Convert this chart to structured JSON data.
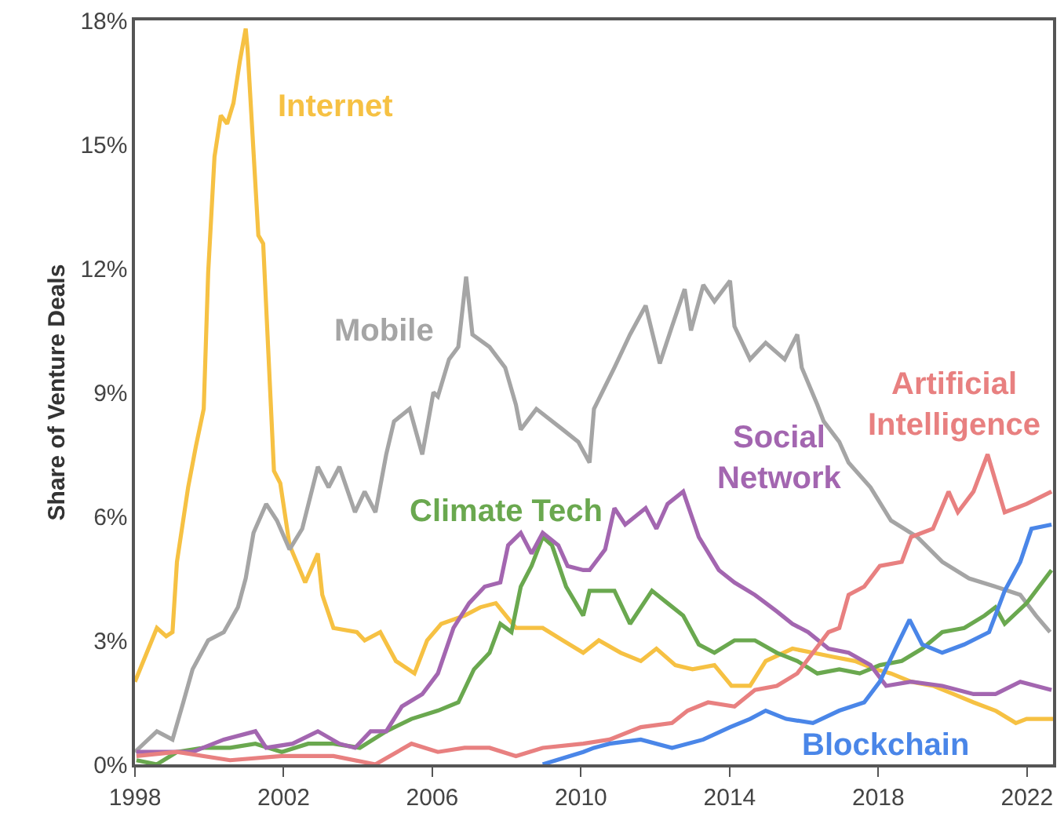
{
  "chart_data": {
    "type": "line",
    "ylabel": "Share of Venture Deals",
    "xlim": [
      1998,
      2022.7
    ],
    "xticks": [
      1998,
      2002,
      2006,
      2010,
      2014,
      2018,
      2022
    ],
    "ylim": [
      0,
      18
    ],
    "yticks": [
      {
        "value": 0,
        "label": "0%"
      },
      {
        "value": 3,
        "label": "3%"
      },
      {
        "value": 6,
        "label": "6%"
      },
      {
        "value": 9,
        "label": "9%"
      },
      {
        "value": 12,
        "label": "12%"
      },
      {
        "value": 15,
        "label": "15%"
      },
      {
        "value": 18,
        "label": "18%"
      }
    ],
    "legend": false,
    "marker": "none",
    "line_style": "solid",
    "series": [
      {
        "name": "Internet",
        "color": "#f6c143",
        "x": [
          1998.0,
          1998.59,
          1998.84,
          1999.01,
          1999.13,
          1999.43,
          1999.64,
          1999.85,
          1999.97,
          2000.14,
          2000.31,
          2000.48,
          2000.65,
          2000.82,
          2000.98,
          2001.03,
          2001.32,
          2001.45,
          2001.74,
          2001.91,
          2002.16,
          2002.58,
          2002.92,
          2003.04,
          2003.34,
          2003.97,
          2004.18,
          2004.6,
          2005.02,
          2005.52,
          2005.86,
          2006.24,
          2006.87,
          2007.29,
          2007.71,
          2008.25,
          2008.97,
          2009.51,
          2010.06,
          2010.48,
          2011.07,
          2011.61,
          2012.03,
          2012.54,
          2013.0,
          2013.59,
          2014.05,
          2014.55,
          2014.97,
          2015.69,
          2016.24,
          2016.78,
          2017.37,
          2017.92,
          2018.34,
          2018.88,
          2019.47,
          2020.02,
          2020.56,
          2021.15,
          2021.7,
          2021.99,
          2022.7
        ],
        "values": [
          2.0,
          3.3,
          3.1,
          3.2,
          4.9,
          6.7,
          7.7,
          8.6,
          11.9,
          14.7,
          15.7,
          15.5,
          16.0,
          17.0,
          17.8,
          17.3,
          12.8,
          12.6,
          7.1,
          6.8,
          5.3,
          4.4,
          5.1,
          4.1,
          3.3,
          3.2,
          3.0,
          3.2,
          2.5,
          2.2,
          3.0,
          3.4,
          3.6,
          3.8,
          3.9,
          3.3,
          3.3,
          3.0,
          2.7,
          3.0,
          2.7,
          2.5,
          2.8,
          2.4,
          2.3,
          2.4,
          1.9,
          1.9,
          2.5,
          2.8,
          2.7,
          2.6,
          2.5,
          2.3,
          2.2,
          2.0,
          1.9,
          1.7,
          1.5,
          1.3,
          1.0,
          1.1,
          1.1
        ]
      },
      {
        "name": "Mobile",
        "color": "#a5a5a5",
        "x": [
          1998.0,
          1998.59,
          1999.01,
          1999.3,
          1999.55,
          1999.97,
          2000.39,
          2000.77,
          2000.98,
          2001.19,
          2001.53,
          2001.82,
          2002.16,
          2002.5,
          2002.92,
          2003.21,
          2003.5,
          2003.92,
          2004.18,
          2004.47,
          2004.76,
          2004.97,
          2005.39,
          2005.73,
          2006.03,
          2006.15,
          2006.45,
          2006.7,
          2006.91,
          2007.08,
          2007.54,
          2007.96,
          2008.25,
          2008.38,
          2008.8,
          2009.51,
          2009.93,
          2010.23,
          2010.35,
          2010.9,
          2011.32,
          2011.74,
          2012.12,
          2012.45,
          2012.79,
          2012.96,
          2013.29,
          2013.59,
          2014.01,
          2014.13,
          2014.55,
          2014.97,
          2015.48,
          2015.82,
          2015.94,
          2016.36,
          2016.53,
          2016.95,
          2017.2,
          2017.79,
          2018.34,
          2019.05,
          2019.72,
          2020.44,
          2021.15,
          2021.82,
          2022.24,
          2022.62
        ],
        "values": [
          0.3,
          0.8,
          0.6,
          1.5,
          2.3,
          3.0,
          3.2,
          3.8,
          4.5,
          5.6,
          6.3,
          5.9,
          5.2,
          5.7,
          7.2,
          6.7,
          7.2,
          6.1,
          6.6,
          6.1,
          7.5,
          8.3,
          8.6,
          7.5,
          9.0,
          8.9,
          9.8,
          10.1,
          11.8,
          10.4,
          10.1,
          9.6,
          8.7,
          8.1,
          8.6,
          8.1,
          7.8,
          7.3,
          8.6,
          9.6,
          10.4,
          11.1,
          9.7,
          10.6,
          11.5,
          10.5,
          11.6,
          11.2,
          11.7,
          10.6,
          9.8,
          10.2,
          9.8,
          10.4,
          9.6,
          8.7,
          8.3,
          7.8,
          7.3,
          6.7,
          5.9,
          5.5,
          4.9,
          4.5,
          4.3,
          4.1,
          3.6,
          3.2
        ]
      },
      {
        "name": "Climate Tech",
        "color": "#6aa84f",
        "x": [
          1998.04,
          1998.59,
          1999.13,
          1999.85,
          2000.56,
          2001.24,
          2001.95,
          2002.66,
          2003.34,
          2004.05,
          2004.76,
          2005.44,
          2006.15,
          2006.7,
          2007.12,
          2007.54,
          2007.83,
          2008.13,
          2008.38,
          2008.67,
          2008.97,
          2009.22,
          2009.6,
          2010.06,
          2010.23,
          2010.48,
          2010.9,
          2011.32,
          2011.91,
          2012.33,
          2012.75,
          2013.17,
          2013.59,
          2014.13,
          2014.68,
          2015.27,
          2015.82,
          2016.36,
          2016.95,
          2017.5,
          2018.04,
          2018.63,
          2019.18,
          2019.72,
          2020.31,
          2020.86,
          2021.15,
          2021.4,
          2021.99,
          2022.66
        ],
        "values": [
          0.1,
          0.0,
          0.3,
          0.4,
          0.4,
          0.5,
          0.3,
          0.5,
          0.5,
          0.4,
          0.8,
          1.1,
          1.3,
          1.5,
          2.3,
          2.7,
          3.4,
          3.2,
          4.3,
          4.8,
          5.5,
          5.3,
          4.3,
          3.6,
          4.2,
          4.2,
          4.2,
          3.4,
          4.2,
          3.9,
          3.6,
          2.9,
          2.7,
          3.0,
          3.0,
          2.7,
          2.5,
          2.2,
          2.3,
          2.2,
          2.4,
          2.5,
          2.8,
          3.2,
          3.3,
          3.6,
          3.8,
          3.4,
          3.9,
          4.7
        ]
      },
      {
        "name": "Social Network",
        "color": "#a366b0",
        "x": [
          1998.04,
          1999.01,
          1999.55,
          2000.39,
          2001.24,
          2001.53,
          2002.24,
          2002.92,
          2003.5,
          2003.92,
          2004.34,
          2004.76,
          2005.18,
          2005.73,
          2006.15,
          2006.57,
          2006.99,
          2007.41,
          2007.83,
          2008.04,
          2008.38,
          2008.67,
          2008.97,
          2009.39,
          2009.64,
          2010.06,
          2010.23,
          2010.65,
          2010.9,
          2011.19,
          2011.74,
          2012.03,
          2012.33,
          2012.75,
          2013.17,
          2013.71,
          2014.13,
          2014.68,
          2015.27,
          2015.69,
          2016.11,
          2016.66,
          2017.2,
          2017.79,
          2018.21,
          2018.88,
          2019.72,
          2020.56,
          2021.15,
          2021.82,
          2022.66
        ],
        "values": [
          0.3,
          0.3,
          0.3,
          0.6,
          0.8,
          0.4,
          0.5,
          0.8,
          0.5,
          0.4,
          0.8,
          0.8,
          1.4,
          1.7,
          2.2,
          3.3,
          3.9,
          4.3,
          4.4,
          5.3,
          5.6,
          5.1,
          5.6,
          5.3,
          4.8,
          4.7,
          4.7,
          5.2,
          6.2,
          5.8,
          6.2,
          5.7,
          6.3,
          6.6,
          5.5,
          4.7,
          4.4,
          4.1,
          3.7,
          3.4,
          3.2,
          2.8,
          2.7,
          2.4,
          1.9,
          2.0,
          1.9,
          1.7,
          1.7,
          2.0,
          1.8
        ]
      },
      {
        "name": "Artificial Intelligence",
        "color": "#e88080",
        "x": [
          1998.04,
          1999.13,
          2000.56,
          2001.95,
          2003.34,
          2004.47,
          2005.44,
          2006.15,
          2006.87,
          2007.54,
          2008.25,
          2008.97,
          2010.06,
          2010.77,
          2011.61,
          2012.45,
          2012.87,
          2013.42,
          2014.13,
          2014.68,
          2015.27,
          2015.82,
          2016.24,
          2016.66,
          2016.95,
          2017.2,
          2017.62,
          2018.04,
          2018.63,
          2018.88,
          2019.47,
          2019.89,
          2020.14,
          2020.56,
          2020.94,
          2021.4,
          2021.99,
          2022.66
        ],
        "values": [
          0.2,
          0.3,
          0.1,
          0.2,
          0.2,
          0.0,
          0.5,
          0.3,
          0.4,
          0.4,
          0.2,
          0.4,
          0.5,
          0.6,
          0.9,
          1.0,
          1.3,
          1.5,
          1.4,
          1.8,
          1.9,
          2.2,
          2.7,
          3.2,
          3.3,
          4.1,
          4.3,
          4.8,
          4.9,
          5.5,
          5.7,
          6.6,
          6.1,
          6.6,
          7.5,
          6.1,
          6.3,
          6.6
        ]
      },
      {
        "name": "Blockchain",
        "color": "#4a86e8",
        "x": [
          2008.97,
          2010.06,
          2010.35,
          2010.77,
          2011.61,
          2012.45,
          2013.29,
          2014.01,
          2014.55,
          2014.97,
          2015.52,
          2016.24,
          2016.95,
          2017.62,
          2018.04,
          2018.46,
          2018.84,
          2019.18,
          2019.72,
          2020.31,
          2020.98,
          2021.4,
          2021.82,
          2022.12,
          2022.66
        ],
        "values": [
          0.0,
          0.3,
          0.4,
          0.5,
          0.6,
          0.4,
          0.6,
          0.9,
          1.1,
          1.3,
          1.1,
          1.0,
          1.3,
          1.5,
          2.0,
          2.8,
          3.5,
          2.9,
          2.7,
          2.9,
          3.2,
          4.2,
          4.9,
          5.7,
          5.8
        ]
      }
    ]
  }
}
